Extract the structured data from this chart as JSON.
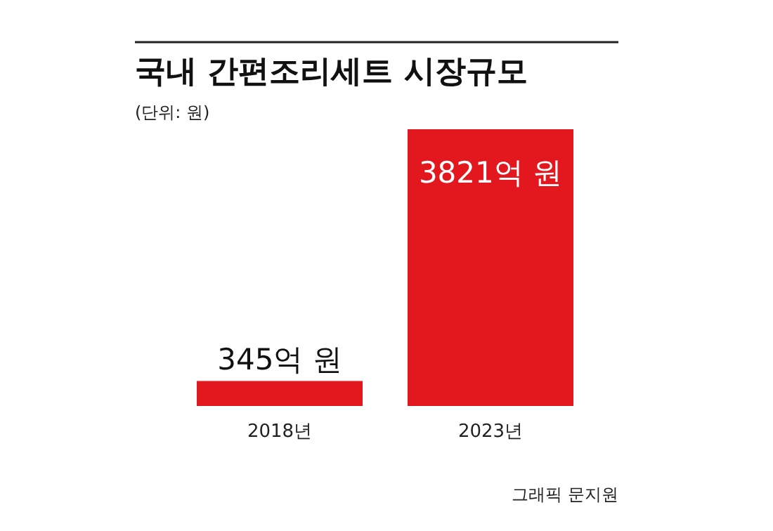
{
  "chart_data": {
    "type": "bar",
    "title": "국내 간편조리세트 시장규모",
    "subtitle": "(단위: 원)",
    "categories": [
      "2018년",
      "2023년"
    ],
    "values": [
      345,
      3821
    ],
    "value_labels": [
      "345억 원",
      "3821억 원"
    ],
    "color": "#e3171e",
    "annotations": [
      "그래픽 문지원"
    ]
  }
}
